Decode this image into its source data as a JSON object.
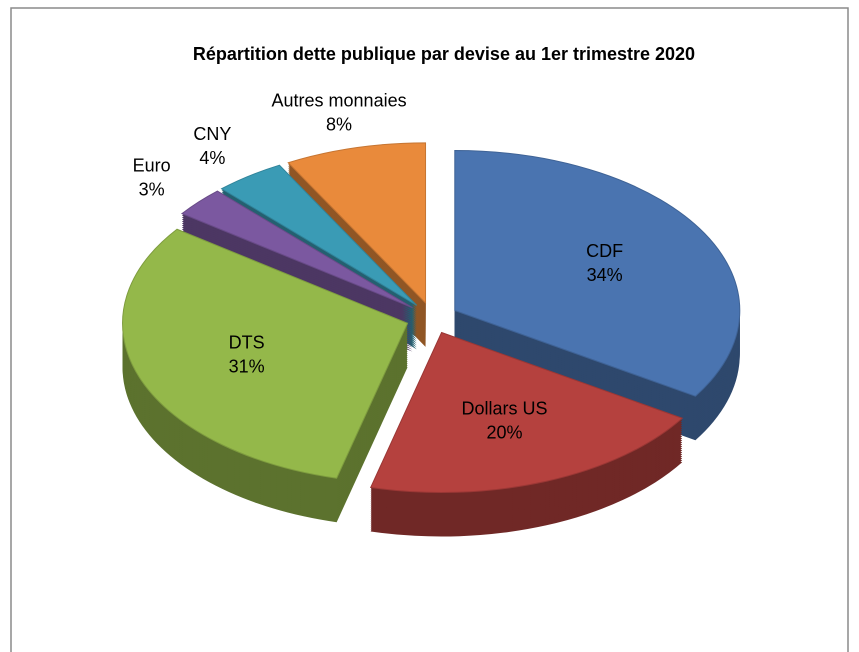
{
  "chart_data": {
    "type": "pie",
    "title": "Répartition dette publique par devise au 1er trimestre 2020",
    "categories": [
      "CDF",
      "Dollars US",
      "DTS",
      "Euro",
      "CNY",
      "Autres monnaies"
    ],
    "values": [
      34,
      20,
      31,
      3,
      4,
      8
    ],
    "value_labels": [
      "34%",
      "20%",
      "31%",
      "3%",
      "4%",
      "8%"
    ],
    "colors": [
      "#4a74b0",
      "#b5413e",
      "#94b84a",
      "#7b58a0",
      "#3a9bb5",
      "#e98a3b"
    ]
  }
}
